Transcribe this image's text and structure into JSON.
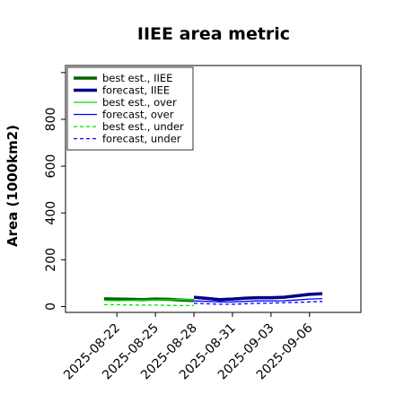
{
  "chart_data": {
    "type": "line",
    "title": "IIEE area metric",
    "ylabel": "Area (1000km2)",
    "xlabel": "",
    "ylim": [
      -25,
      1030
    ],
    "y_ticks": [
      0,
      200,
      400,
      600,
      800
    ],
    "x_ticks": [
      "2025-08-22",
      "2025-08-25",
      "2025-08-28",
      "2025-08-31",
      "2025-09-03",
      "2025-09-06"
    ],
    "highlight_tick": "2025-08-28",
    "highlight_color": "#228b22",
    "xlim": [
      "2025-08-18",
      "2025-09-10"
    ],
    "legend_position": "top-left",
    "grid": false,
    "series": [
      {
        "name": "best est., IIEE",
        "color": "#006400",
        "style": "solid",
        "weight": "thick",
        "x": [
          "2025-08-21",
          "2025-08-22",
          "2025-08-23",
          "2025-08-24",
          "2025-08-25",
          "2025-08-26",
          "2025-08-27",
          "2025-08-28"
        ],
        "y": [
          33,
          32,
          31,
          30,
          32,
          31,
          28,
          26
        ]
      },
      {
        "name": "forecast, IIEE",
        "color": "#00008b",
        "style": "solid",
        "weight": "thick",
        "x": [
          "2025-08-28",
          "2025-08-29",
          "2025-08-30",
          "2025-08-31",
          "2025-09-01",
          "2025-09-02",
          "2025-09-03",
          "2025-09-04",
          "2025-09-05",
          "2025-09-06",
          "2025-09-07"
        ],
        "y": [
          40,
          35,
          30,
          32,
          36,
          38,
          38,
          40,
          46,
          52,
          55
        ]
      },
      {
        "name": "best est., over",
        "color": "#00e000",
        "style": "solid",
        "weight": "thin",
        "x": [
          "2025-08-21",
          "2025-08-22",
          "2025-08-23",
          "2025-08-24",
          "2025-08-25",
          "2025-08-26",
          "2025-08-27",
          "2025-08-28"
        ],
        "y": [
          26,
          25,
          26,
          27,
          28,
          29,
          30,
          28
        ]
      },
      {
        "name": "forecast, over",
        "color": "#0000ff",
        "style": "solid",
        "weight": "thin",
        "x": [
          "2025-08-28",
          "2025-08-29",
          "2025-08-30",
          "2025-08-31",
          "2025-09-01",
          "2025-09-02",
          "2025-09-03",
          "2025-09-04",
          "2025-09-05",
          "2025-09-06",
          "2025-09-07"
        ],
        "y": [
          24,
          22,
          20,
          20,
          22,
          24,
          24,
          25,
          28,
          32,
          34
        ]
      },
      {
        "name": "best est., under",
        "color": "#00e000",
        "style": "dashed",
        "weight": "thin",
        "x": [
          "2025-08-21",
          "2025-08-22",
          "2025-08-23",
          "2025-08-24",
          "2025-08-25",
          "2025-08-26",
          "2025-08-27",
          "2025-08-28"
        ],
        "y": [
          8,
          8,
          7,
          6,
          6,
          5,
          4,
          4
        ]
      },
      {
        "name": "forecast, under",
        "color": "#0000ff",
        "style": "dashed",
        "weight": "thin",
        "x": [
          "2025-08-28",
          "2025-08-29",
          "2025-08-30",
          "2025-08-31",
          "2025-09-01",
          "2025-09-02",
          "2025-09-03",
          "2025-09-04",
          "2025-09-05",
          "2025-09-06",
          "2025-09-07"
        ],
        "y": [
          14,
          12,
          10,
          10,
          12,
          14,
          15,
          17,
          18,
          20,
          22
        ]
      }
    ]
  }
}
